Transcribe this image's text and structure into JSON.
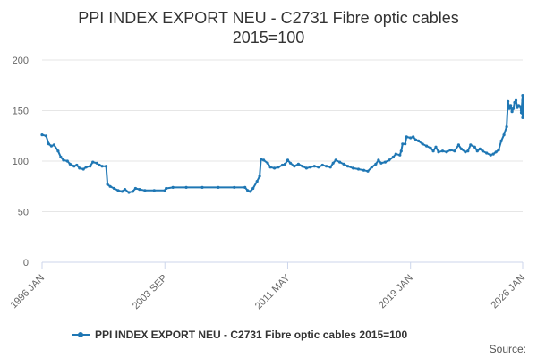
{
  "chart_data": {
    "type": "line",
    "title_lines": [
      "PPI INDEX EXPORT NEU - C2731 Fibre optic cables",
      "2015=100"
    ],
    "xlabel": "",
    "ylabel": "",
    "x_range": [
      "1996-01",
      "2026-01"
    ],
    "ylim": [
      0,
      200
    ],
    "y_ticks": [
      0,
      50,
      100,
      150,
      200
    ],
    "x_ticks": [
      {
        "date": "1996-01",
        "label": "1996 JAN"
      },
      {
        "date": "2003-09",
        "label": "2003 SEP"
      },
      {
        "date": "2011-05",
        "label": "2011 MAY"
      },
      {
        "date": "2019-01",
        "label": "2019 JAN"
      },
      {
        "date": "2026-01",
        "label": "2026 JAN"
      }
    ],
    "grid": true,
    "legend_position": "bottom",
    "color": "#1f77b4",
    "series": [
      {
        "name": "PPI INDEX EXPORT NEU - C2731 Fibre optic cables 2015=100",
        "points": [
          [
            "1996-01",
            126
          ],
          [
            "1996-04",
            125
          ],
          [
            "1996-06",
            117
          ],
          [
            "1996-08",
            115
          ],
          [
            "1996-10",
            116
          ],
          [
            "1997-01",
            110
          ],
          [
            "1997-03",
            104
          ],
          [
            "1997-05",
            101
          ],
          [
            "1997-08",
            100
          ],
          [
            "1997-10",
            97
          ],
          [
            "1998-01",
            95
          ],
          [
            "1998-03",
            96
          ],
          [
            "1998-05",
            93
          ],
          [
            "1998-08",
            92
          ],
          [
            "1998-10",
            94
          ],
          [
            "1999-01",
            95
          ],
          [
            "1999-03",
            99
          ],
          [
            "1999-06",
            98
          ],
          [
            "1999-08",
            96
          ],
          [
            "1999-10",
            95
          ],
          [
            "2000-01",
            95
          ],
          [
            "2000-02",
            77
          ],
          [
            "2000-04",
            75
          ],
          [
            "2000-07",
            73
          ],
          [
            "2000-10",
            71
          ],
          [
            "2001-01",
            70
          ],
          [
            "2001-03",
            72
          ],
          [
            "2001-06",
            69
          ],
          [
            "2001-09",
            70
          ],
          [
            "2001-11",
            73
          ],
          [
            "2002-02",
            72
          ],
          [
            "2002-06",
            71
          ],
          [
            "2003-01",
            71
          ],
          [
            "2003-09",
            71
          ],
          [
            "2003-10",
            73
          ],
          [
            "2004-03",
            74
          ],
          [
            "2005-01",
            74
          ],
          [
            "2006-01",
            74
          ],
          [
            "2007-01",
            74
          ],
          [
            "2008-01",
            74
          ],
          [
            "2008-09",
            74
          ],
          [
            "2008-11",
            71
          ],
          [
            "2009-01",
            70
          ],
          [
            "2009-03",
            73
          ],
          [
            "2009-06",
            80
          ],
          [
            "2009-08",
            85
          ],
          [
            "2009-09",
            102
          ],
          [
            "2009-11",
            101
          ],
          [
            "2010-02",
            98
          ],
          [
            "2010-04",
            94
          ],
          [
            "2010-07",
            93
          ],
          [
            "2010-10",
            94
          ],
          [
            "2011-01",
            96
          ],
          [
            "2011-03",
            97
          ],
          [
            "2011-05",
            101
          ],
          [
            "2011-07",
            98
          ],
          [
            "2011-10",
            95
          ],
          [
            "2012-01",
            97
          ],
          [
            "2012-04",
            95
          ],
          [
            "2012-07",
            93
          ],
          [
            "2012-10",
            94
          ],
          [
            "2013-01",
            95
          ],
          [
            "2013-04",
            94
          ],
          [
            "2013-07",
            96
          ],
          [
            "2013-10",
            95
          ],
          [
            "2014-01",
            94
          ],
          [
            "2014-03",
            98
          ],
          [
            "2014-05",
            101
          ],
          [
            "2014-08",
            99
          ],
          [
            "2014-11",
            97
          ],
          [
            "2015-02",
            95
          ],
          [
            "2015-06",
            93
          ],
          [
            "2015-10",
            92
          ],
          [
            "2016-02",
            91
          ],
          [
            "2016-05",
            90
          ],
          [
            "2016-08",
            94
          ],
          [
            "2016-11",
            97
          ],
          [
            "2017-01",
            101
          ],
          [
            "2017-03",
            98
          ],
          [
            "2017-06",
            99
          ],
          [
            "2017-09",
            101
          ],
          [
            "2017-12",
            104
          ],
          [
            "2018-02",
            107
          ],
          [
            "2018-05",
            106
          ],
          [
            "2018-06",
            110
          ],
          [
            "2018-07",
            117
          ],
          [
            "2018-09",
            117
          ],
          [
            "2018-10",
            124
          ],
          [
            "2019-01",
            123
          ],
          [
            "2019-03",
            124
          ],
          [
            "2019-05",
            121
          ],
          [
            "2019-07",
            120
          ],
          [
            "2019-10",
            117
          ],
          [
            "2020-01",
            115
          ],
          [
            "2020-04",
            113
          ],
          [
            "2020-06",
            110
          ],
          [
            "2020-08",
            114
          ],
          [
            "2020-10",
            109
          ],
          [
            "2021-01",
            110
          ],
          [
            "2021-04",
            109
          ],
          [
            "2021-07",
            111
          ],
          [
            "2021-10",
            110
          ],
          [
            "2022-01",
            116
          ],
          [
            "2022-03",
            112
          ],
          [
            "2022-06",
            109
          ],
          [
            "2022-08",
            110
          ],
          [
            "2022-10",
            116
          ],
          [
            "2023-01",
            114
          ],
          [
            "2023-03",
            110
          ],
          [
            "2023-05",
            112
          ],
          [
            "2023-07",
            110
          ],
          [
            "2023-10",
            108
          ],
          [
            "2024-01",
            106
          ],
          [
            "2024-03",
            107
          ],
          [
            "2024-05",
            109
          ],
          [
            "2024-07",
            111
          ],
          [
            "2024-09",
            120
          ],
          [
            "2024-11",
            126
          ],
          [
            "2025-01",
            134
          ],
          [
            "2025-02",
            159
          ],
          [
            "2025-03",
            152
          ],
          [
            "2025-04",
            155
          ],
          [
            "2025-05",
            149
          ],
          [
            "2025-06",
            152
          ],
          [
            "2025-07",
            158
          ],
          [
            "2025-08",
            160
          ],
          [
            "2025-09",
            153
          ],
          [
            "2025-10",
            155
          ],
          [
            "2025-11",
            154
          ],
          [
            "2025-12",
            150
          ],
          [
            "2025-12",
            148
          ],
          [
            "2026-01",
            165
          ],
          [
            "2026-01",
            160
          ],
          [
            "2026-01",
            155
          ],
          [
            "2026-01",
            148
          ],
          [
            "2026-01",
            149
          ],
          [
            "2026-01",
            146
          ],
          [
            "2026-01",
            143
          ]
        ]
      }
    ]
  },
  "legend": {
    "label": "PPI INDEX EXPORT NEU - C2731 Fibre optic cables 2015=100"
  },
  "footer": {
    "source_label": "Source:"
  }
}
